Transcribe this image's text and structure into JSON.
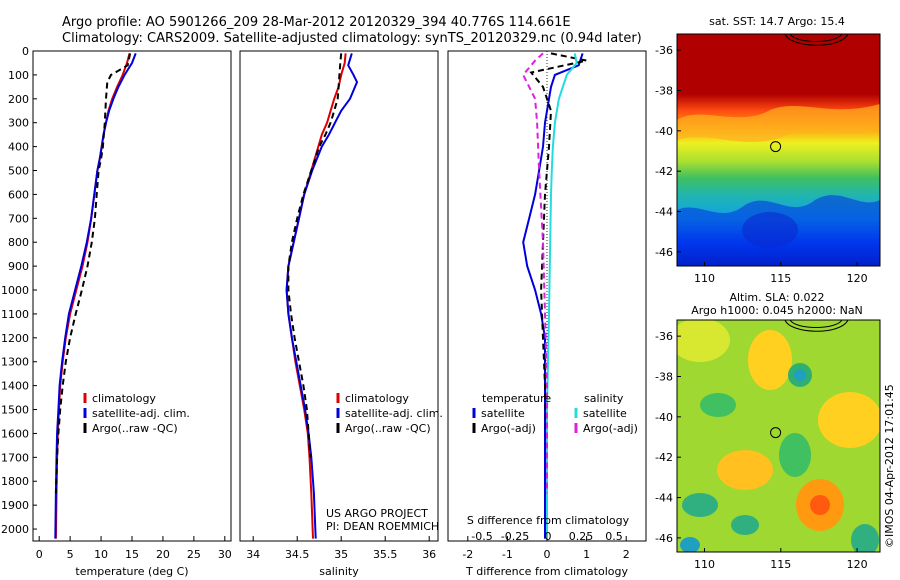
{
  "title_line1": "Argo profile: AO 5901266_209 28-Mar-2012 20120329_394 40.776S 114.661E",
  "title_line2": "Climatology: CARS2009. Satellite-adjusted climatology: synTS_20120329.nc (0.94d later)",
  "colors": {
    "climatology": "#dd0000",
    "satellite_adj": "#0000dd",
    "argo": "#000000",
    "salinity_satellite": "#22dddd",
    "salinity_argo": "#dd22dd"
  },
  "chart_data": [
    {
      "type": "line",
      "panel": "temperature",
      "xlabel": "temperature (deg C)",
      "ylabel": "",
      "xlim": [
        -1,
        31
      ],
      "ylim": [
        2050,
        0
      ],
      "y_reversed": true,
      "xticks": [
        "0",
        "5",
        "10",
        "15",
        "20",
        "25",
        "30"
      ],
      "yticks": [
        "0",
        "100",
        "200",
        "300",
        "400",
        "500",
        "600",
        "700",
        "800",
        "900",
        "1000",
        "1100",
        "1200",
        "1300",
        "1400",
        "1500",
        "1600",
        "1700",
        "1800",
        "1900",
        "2000"
      ],
      "legend": [
        "climatology",
        "satellite-adj. clim.",
        "Argo(..raw -QC)"
      ],
      "legend_position": "lower-left",
      "series": [
        {
          "name": "climatology",
          "color": "#dd0000",
          "dash": "",
          "x": [
            14.6,
            14.2,
            13.5,
            12.6,
            11.8,
            11.2,
            10.8,
            10.4,
            10.1,
            9.8,
            9.4,
            8.9,
            8.4,
            7.8,
            7.0,
            6.0,
            5.0,
            4.3,
            3.8,
            3.4,
            3.2,
            3.0,
            2.9,
            2.8,
            2.7
          ],
          "y": [
            10,
            50,
            100,
            150,
            200,
            250,
            300,
            350,
            400,
            450,
            500,
            600,
            700,
            800,
            900,
            1000,
            1100,
            1200,
            1300,
            1400,
            1500,
            1600,
            1700,
            1850,
            2040
          ]
        },
        {
          "name": "satellite-adj. clim.",
          "color": "#0000dd",
          "dash": "",
          "x": [
            15.6,
            15.0,
            13.8,
            12.8,
            12.0,
            11.3,
            10.8,
            10.4,
            10.1,
            9.8,
            9.4,
            8.9,
            8.4,
            7.7,
            6.8,
            5.8,
            4.8,
            4.2,
            3.7,
            3.3,
            3.1,
            2.9,
            2.8,
            2.7,
            2.6
          ],
          "y": [
            10,
            50,
            100,
            150,
            200,
            250,
            300,
            350,
            400,
            450,
            500,
            600,
            700,
            800,
            900,
            1000,
            1100,
            1200,
            1300,
            1400,
            1500,
            1600,
            1700,
            1850,
            2040
          ]
        },
        {
          "name": "Argo(..raw -QC)",
          "color": "#000000",
          "dash": "6,4",
          "x": [
            14.7,
            14.3,
            11.6,
            11.0,
            10.8,
            10.6,
            10.3,
            10.0,
            9.6,
            9.3,
            9.0,
            8.5,
            7.8,
            6.9,
            5.9,
            5.0,
            4.3,
            3.8,
            3.4,
            3.1,
            2.9,
            2.7
          ],
          "y": [
            10,
            60,
            100,
            130,
            200,
            300,
            400,
            450,
            500,
            600,
            700,
            800,
            900,
            1000,
            1100,
            1200,
            1300,
            1400,
            1500,
            1600,
            1700,
            1850
          ]
        }
      ]
    },
    {
      "type": "line",
      "panel": "salinity",
      "xlabel": "salinity",
      "ylabel": "",
      "xlim": [
        33.85,
        36.1
      ],
      "ylim": [
        2050,
        0
      ],
      "y_reversed": true,
      "xticks": [
        "34",
        "34.5",
        "35",
        "35.5",
        "36"
      ],
      "legend": [
        "climatology",
        "satellite-adj. clim.",
        "Argo(..raw -QC)"
      ],
      "legend_position": "lower-right",
      "annotation": [
        "US ARGO PROJECT",
        "PI: DEAN ROEMMICH"
      ],
      "series": [
        {
          "name": "climatology",
          "color": "#dd0000",
          "dash": "",
          "x": [
            35.05,
            35.04,
            35.0,
            34.97,
            34.92,
            34.88,
            34.84,
            34.78,
            34.74,
            34.66,
            34.58,
            34.52,
            34.46,
            34.4,
            34.38,
            34.4,
            34.44,
            34.48,
            34.53,
            34.58,
            34.62,
            34.64,
            34.66,
            34.68
          ],
          "y": [
            10,
            50,
            100,
            150,
            200,
            250,
            300,
            350,
            400,
            500,
            600,
            700,
            800,
            900,
            1000,
            1100,
            1200,
            1300,
            1400,
            1500,
            1600,
            1700,
            1850,
            2040
          ]
        },
        {
          "name": "satellite-adj. clim.",
          "color": "#0000dd",
          "dash": "",
          "x": [
            35.12,
            35.08,
            35.14,
            35.18,
            35.1,
            35.0,
            34.93,
            34.86,
            34.78,
            34.67,
            34.58,
            34.52,
            34.46,
            34.4,
            34.38,
            34.4,
            34.44,
            34.49,
            34.54,
            34.59,
            34.63,
            34.66,
            34.69,
            34.71
          ],
          "y": [
            10,
            60,
            100,
            130,
            200,
            250,
            300,
            350,
            400,
            500,
            600,
            700,
            800,
            900,
            1000,
            1100,
            1200,
            1300,
            1400,
            1500,
            1600,
            1700,
            1850,
            2040
          ]
        },
        {
          "name": "Argo(..raw -QC)",
          "color": "#000000",
          "dash": "6,4",
          "x": [
            35.0,
            34.99,
            34.98,
            34.97,
            34.96,
            34.92,
            34.88,
            34.82,
            34.75,
            34.66,
            34.57,
            34.5,
            34.44,
            34.4,
            34.4,
            34.43,
            34.47,
            34.52,
            34.57,
            34.61,
            34.63,
            34.65
          ],
          "y": [
            10,
            50,
            100,
            150,
            200,
            250,
            300,
            350,
            400,
            500,
            600,
            700,
            800,
            900,
            1000,
            1100,
            1200,
            1300,
            1400,
            1500,
            1600,
            1700
          ]
        }
      ]
    },
    {
      "type": "line",
      "panel": "difference",
      "xlabel": "T difference from climatology",
      "xlabel_top": "S difference from climatology",
      "xlim": [
        -2.5,
        2.5
      ],
      "ylim": [
        2050,
        0
      ],
      "y_reversed": true,
      "xticks": [
        "-2",
        "-1",
        "0",
        "1",
        "2"
      ],
      "xticks_top": [
        "-0.5",
        "-0.25",
        "0",
        "0.25",
        "0.5"
      ],
      "legend_groups": [
        {
          "header": "temperature",
          "items": [
            "satellite",
            "Argo(-adj)"
          ]
        },
        {
          "header": "salinity",
          "items": [
            "satellite",
            "Argo(-adj)"
          ]
        }
      ],
      "series": [
        {
          "name": "temperature satellite",
          "color": "#0000dd",
          "dash": "",
          "x": [
            0.9,
            0.8,
            0.2,
            0.1,
            0.0,
            -0.05,
            -0.1,
            -0.2,
            -0.3,
            -0.45,
            -0.6,
            -0.5,
            -0.3,
            -0.15,
            -0.05,
            -0.05,
            -0.05,
            -0.05
          ],
          "y": [
            10,
            60,
            100,
            150,
            250,
            300,
            400,
            500,
            600,
            700,
            800,
            900,
            1000,
            1100,
            1200,
            1400,
            1700,
            2040
          ]
        },
        {
          "name": "temperature Argo(-adj)",
          "color": "#000000",
          "dash": "6,4",
          "x": [
            0.1,
            1.0,
            -0.4,
            -0.1,
            0.1,
            0.05,
            -0.05,
            -0.1,
            -0.15,
            -0.1,
            -0.05,
            0.0
          ],
          "y": [
            10,
            40,
            90,
            150,
            250,
            400,
            600,
            800,
            1000,
            1200,
            1400,
            1850
          ]
        },
        {
          "name": "salinity satellite",
          "color": "#22dddd",
          "dash": "",
          "x": [
            0.7,
            0.75,
            0.5,
            0.3,
            0.2,
            0.15,
            0.12,
            0.1,
            0.08,
            0.05,
            0.0,
            0.0
          ],
          "y": [
            10,
            50,
            100,
            200,
            300,
            400,
            500,
            600,
            800,
            1100,
            1500,
            2040
          ]
        },
        {
          "name": "salinity Argo(-adj)",
          "color": "#dd22dd",
          "dash": "6,4",
          "x": [
            -0.1,
            -0.3,
            -0.6,
            -0.3,
            -0.25,
            -0.2,
            -0.1,
            -0.05,
            0.0,
            0.0
          ],
          "y": [
            10,
            40,
            100,
            200,
            300,
            500,
            800,
            1100,
            1400,
            1850
          ]
        }
      ]
    },
    {
      "type": "heatmap",
      "panel": "sst_map",
      "title": "sat. SST: 14.7  Argo: 15.4",
      "xlim": [
        108.2,
        121.5
      ],
      "ylim": [
        -46.7,
        -35.2
      ],
      "xticks": [
        "110",
        "115",
        "120"
      ],
      "yticks": [
        "-36",
        "-38",
        "-40",
        "-42",
        "-44",
        "-46"
      ],
      "marker": {
        "lon": 114.66,
        "lat": -40.78
      }
    },
    {
      "type": "heatmap",
      "panel": "sla_map",
      "title_line1": "Altim. SLA: 0.022",
      "title_line2": "Argo h1000: 0.045 h2000: NaN",
      "xlim": [
        108.2,
        121.5
      ],
      "ylim": [
        -46.7,
        -35.2
      ],
      "xticks": [
        "110",
        "115",
        "120"
      ],
      "yticks": [
        "-36",
        "-38",
        "-40",
        "-42",
        "-44",
        "-46"
      ],
      "marker": {
        "lon": 114.66,
        "lat": -40.78
      }
    }
  ],
  "side_caption": "©IMOS 04-Apr-2012 17:01:45"
}
